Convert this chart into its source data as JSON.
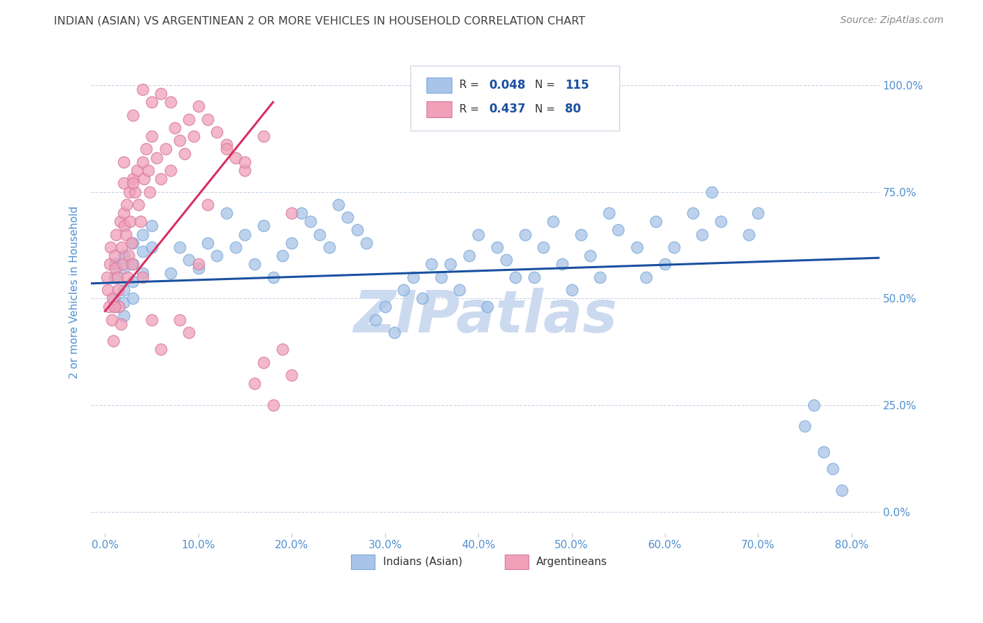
{
  "title": "INDIAN (ASIAN) VS ARGENTINEAN 2 OR MORE VEHICLES IN HOUSEHOLD CORRELATION CHART",
  "source": "Source: ZipAtlas.com",
  "ylabel": "2 or more Vehicles in Household",
  "x_ticks": [
    0.0,
    10.0,
    20.0,
    30.0,
    40.0,
    50.0,
    60.0,
    70.0,
    80.0
  ],
  "y_ticks": [
    0.0,
    25.0,
    50.0,
    75.0,
    100.0
  ],
  "x_tick_labels": [
    "0.0%",
    "10.0%",
    "20.0%",
    "30.0%",
    "40.0%",
    "50.0%",
    "60.0%",
    "70.0%",
    "80.0%"
  ],
  "y_tick_labels": [
    "0.0%",
    "25.0%",
    "50.0%",
    "75.0%",
    "100.0%"
  ],
  "xlim": [
    -1.5,
    83
  ],
  "ylim": [
    -5,
    108
  ],
  "legend_labels": [
    "Indians (Asian)",
    "Argentineans"
  ],
  "legend_r": [
    0.048,
    0.437
  ],
  "legend_n": [
    115,
    80
  ],
  "blue_color": "#a8c4e8",
  "pink_color": "#f0a0b8",
  "blue_line_color": "#1a50a0",
  "pink_line_color": "#d83060",
  "title_color": "#404040",
  "axis_label_color": "#5090d0",
  "tick_color": "#5090d0",
  "watermark": "ZIPatlas",
  "watermark_color": "#ccdaf0",
  "blue_scatter_x": [
    1,
    1,
    1,
    1,
    2,
    2,
    2,
    2,
    2,
    3,
    3,
    3,
    3,
    4,
    4,
    4,
    5,
    5,
    7,
    8,
    9,
    10,
    11,
    12,
    13,
    14,
    15,
    16,
    17,
    18,
    19,
    20,
    21,
    22,
    23,
    24,
    25,
    26,
    27,
    28,
    29,
    30,
    31,
    32,
    33,
    34,
    35,
    36,
    37,
    38,
    39,
    40,
    41,
    42,
    43,
    44,
    45,
    46,
    47,
    48,
    49,
    50,
    51,
    52,
    53,
    54,
    55,
    57,
    58,
    59,
    60,
    61,
    63,
    64,
    65,
    66,
    69,
    70,
    75,
    76,
    77,
    78,
    79
  ],
  "blue_scatter_y": [
    55,
    58,
    50,
    48,
    60,
    57,
    52,
    49,
    46,
    63,
    58,
    54,
    50,
    65,
    61,
    56,
    67,
    62,
    56,
    62,
    59,
    57,
    63,
    60,
    70,
    62,
    65,
    58,
    67,
    55,
    60,
    63,
    70,
    68,
    65,
    62,
    72,
    69,
    66,
    63,
    45,
    48,
    42,
    52,
    55,
    50,
    58,
    55,
    58,
    52,
    60,
    65,
    48,
    62,
    59,
    55,
    65,
    55,
    62,
    68,
    58,
    52,
    65,
    60,
    55,
    70,
    66,
    62,
    55,
    68,
    58,
    62,
    70,
    65,
    75,
    68,
    65,
    70,
    20,
    25,
    14,
    10,
    5
  ],
  "pink_scatter_x": [
    0.2,
    0.3,
    0.4,
    0.5,
    0.6,
    0.7,
    0.8,
    0.9,
    1.0,
    1.1,
    1.2,
    1.3,
    1.4,
    1.5,
    1.6,
    1.7,
    1.8,
    1.9,
    2.0,
    2.1,
    2.2,
    2.3,
    2.4,
    2.5,
    2.6,
    2.7,
    2.8,
    2.9,
    3.0,
    3.2,
    3.4,
    3.6,
    3.8,
    4.0,
    4.2,
    4.4,
    4.6,
    4.8,
    5.0,
    5.5,
    6.0,
    6.5,
    7.0,
    7.5,
    8.0,
    8.5,
    9.0,
    9.5,
    10,
    11,
    12,
    13,
    14,
    15,
    16,
    17,
    18,
    19,
    20,
    3,
    5,
    7,
    4,
    6,
    8,
    9,
    2,
    1,
    10,
    11,
    13,
    15,
    17,
    20,
    6,
    4,
    2,
    3,
    5
  ],
  "pink_scatter_y": [
    55,
    52,
    48,
    58,
    62,
    45,
    50,
    40,
    60,
    57,
    65,
    55,
    52,
    48,
    68,
    44,
    62,
    58,
    70,
    67,
    65,
    72,
    55,
    60,
    75,
    68,
    63,
    58,
    78,
    75,
    80,
    72,
    68,
    82,
    78,
    85,
    80,
    75,
    88,
    83,
    78,
    85,
    80,
    90,
    87,
    84,
    92,
    88,
    95,
    92,
    89,
    86,
    83,
    80,
    30,
    35,
    25,
    38,
    32,
    93,
    96,
    96,
    99,
    98,
    45,
    42,
    77,
    48,
    58,
    72,
    85,
    82,
    88,
    70,
    38,
    55,
    82,
    77,
    45
  ],
  "blue_line_x": [
    -1.5,
    83
  ],
  "blue_line_y": [
    53.5,
    59.5
  ],
  "pink_line_x": [
    0,
    18
  ],
  "pink_line_y": [
    47,
    96
  ]
}
